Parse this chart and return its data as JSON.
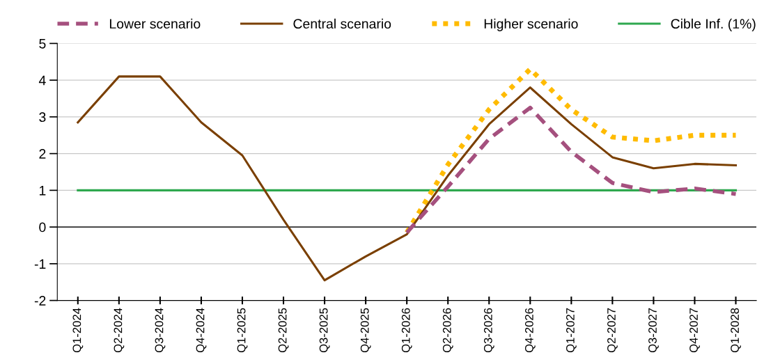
{
  "chart_data": {
    "type": "line",
    "categories": [
      "Q1-2024",
      "Q2-2024",
      "Q3-2024",
      "Q4-2024",
      "Q1-2025",
      "Q2-2025",
      "Q3-2025",
      "Q4-2025",
      "Q1-2026",
      "Q2-2026",
      "Q3-2026",
      "Q4-2026",
      "Q1-2027",
      "Q2-2027",
      "Q3-2027",
      "Q4-2027",
      "Q1-2028"
    ],
    "series": [
      {
        "name": "Lower scenario",
        "color": "#a5507e",
        "line_style": "dashed",
        "values": [
          null,
          null,
          null,
          null,
          null,
          null,
          null,
          null,
          -0.15,
          1.1,
          2.4,
          3.25,
          2.05,
          1.2,
          0.95,
          1.05,
          0.9
        ]
      },
      {
        "name": "Central scenario",
        "color": "#7a3f00",
        "line_style": "solid",
        "values": [
          2.85,
          4.1,
          4.1,
          2.85,
          1.95,
          0.2,
          -1.45,
          -0.8,
          -0.2,
          1.4,
          2.8,
          3.8,
          2.8,
          1.9,
          1.6,
          1.72,
          1.68
        ]
      },
      {
        "name": "Higher scenario",
        "color": "#ffbb00",
        "line_style": "dotted",
        "values": [
          null,
          null,
          null,
          null,
          null,
          null,
          null,
          null,
          -0.15,
          1.7,
          3.2,
          4.3,
          3.2,
          2.45,
          2.35,
          2.5,
          2.5
        ]
      },
      {
        "name": "Cible Inf. (1%)",
        "color": "#2ea84f",
        "line_style": "solid",
        "values": [
          1,
          1,
          1,
          1,
          1,
          1,
          1,
          1,
          1,
          1,
          1,
          1,
          1,
          1,
          1,
          1,
          1
        ]
      }
    ],
    "ylim": [
      -2,
      5
    ],
    "yticks": [
      -2,
      -1,
      0,
      1,
      2,
      3,
      4,
      5
    ],
    "grid": "y",
    "legend": "top",
    "marker": "none"
  }
}
